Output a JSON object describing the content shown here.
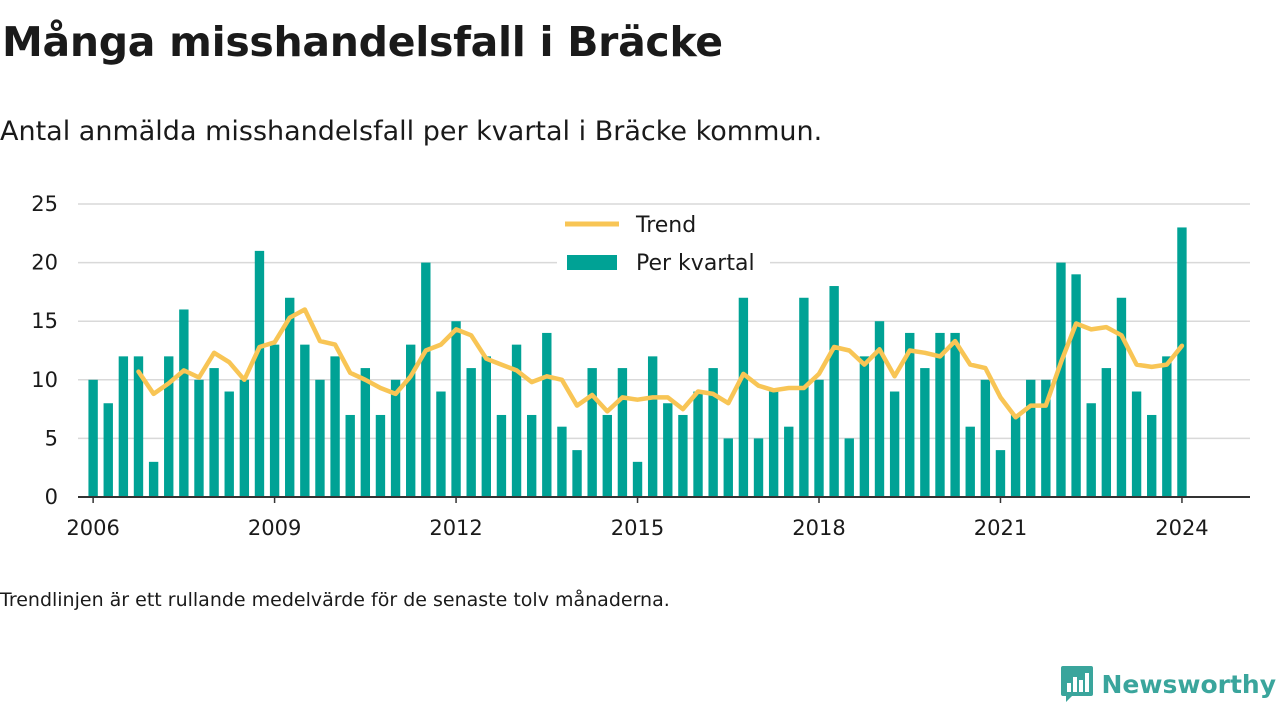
{
  "header": {
    "title": "Många misshandelsfall i Bräcke",
    "subtitle": "Antal anmälda misshandelsfall per kvartal i Bräcke kommun."
  },
  "footer": {
    "note": "Trendlinjen är ett rullande medelvärde för de senaste tolv månaderna.",
    "brand": "Newsworthy",
    "logo_icon": "bar-chart-icon"
  },
  "colors": {
    "bars": "#00a295",
    "trend": "#f8c555",
    "grid": "#d9d9d9",
    "axis": "#333333",
    "brand": "#3aa59c"
  },
  "chart_data": {
    "type": "bar",
    "legend_position": "top-center",
    "grid": true,
    "ylim": [
      0,
      25
    ],
    "yticks": [
      0,
      5,
      10,
      15,
      20,
      25
    ],
    "xlim": [
      2005.75,
      2025.125
    ],
    "xticks": [
      "2006",
      "2009",
      "2012",
      "2015",
      "2018",
      "2021",
      "2024"
    ],
    "x_start": "2006-Q1",
    "series": [
      {
        "name": "Per kvartal",
        "kind": "bar",
        "values": [
          10,
          8,
          12,
          12,
          3,
          12,
          16,
          10,
          11,
          9,
          10,
          21,
          13,
          17,
          13,
          10,
          12,
          7,
          11,
          7,
          10,
          13,
          20,
          9,
          15,
          11,
          12,
          7,
          13,
          7,
          14,
          6,
          4,
          11,
          7,
          11,
          3,
          12,
          8,
          7,
          9,
          11,
          5,
          17,
          5,
          9,
          6,
          17,
          10,
          18,
          5,
          12,
          15,
          9,
          14,
          11,
          14,
          14,
          6,
          10,
          4,
          7,
          10,
          10,
          20,
          19,
          8,
          11,
          17,
          9,
          7,
          12,
          23
        ]
      },
      {
        "name": "Trend",
        "kind": "line",
        "start_index": 3,
        "values": [
          10.7,
          8.8,
          9.7,
          10.8,
          10.2,
          12.3,
          11.5,
          10.0,
          12.8,
          13.2,
          15.3,
          16.0,
          13.3,
          13.0,
          10.6,
          10.0,
          9.3,
          8.8,
          10.3,
          12.5,
          13.0,
          14.3,
          13.8,
          11.8,
          11.3,
          10.8,
          9.8,
          10.3,
          10.0,
          7.8,
          8.7,
          7.3,
          8.5,
          8.3,
          8.5,
          8.5,
          7.5,
          9.0,
          8.8,
          8.0,
          10.5,
          9.5,
          9.1,
          9.3,
          9.3,
          10.5,
          12.8,
          12.5,
          11.3,
          12.6,
          10.3,
          12.5,
          12.3,
          12.0,
          13.3,
          11.3,
          11.0,
          8.5,
          6.8,
          7.8,
          7.8,
          11.5,
          14.8,
          14.3,
          14.5,
          13.8,
          11.3,
          11.1,
          11.3,
          12.9
        ]
      }
    ]
  }
}
